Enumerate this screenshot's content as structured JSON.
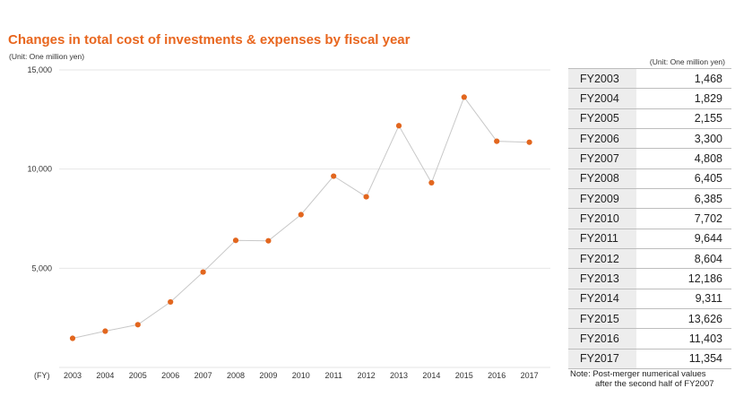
{
  "title": "Changes in total cost of investments & expenses by fiscal year",
  "unit_left": "(Unit: One million yen)",
  "unit_right": "(Unit: One million yen)",
  "x_axis_label": "(FY)",
  "note_line1": "Note: Post-merger numerical values",
  "note_line2": "after the second half of FY2007",
  "colors": {
    "title": "#e8661e",
    "marker": "#e2661e",
    "line": "#c8c8c8",
    "grid": "#e6e6e6",
    "table_label_bg": "#ededed"
  },
  "table": {
    "rows": [
      {
        "label": "FY2003",
        "value": "1,468"
      },
      {
        "label": "FY2004",
        "value": "1,829"
      },
      {
        "label": "FY2005",
        "value": "2,155"
      },
      {
        "label": "FY2006",
        "value": "3,300"
      },
      {
        "label": "FY2007",
        "value": "4,808"
      },
      {
        "label": "FY2008",
        "value": "6,405"
      },
      {
        "label": "FY2009",
        "value": "6,385"
      },
      {
        "label": "FY2010",
        "value": "7,702"
      },
      {
        "label": "FY2011",
        "value": "9,644"
      },
      {
        "label": "FY2012",
        "value": "8,604"
      },
      {
        "label": "FY2013",
        "value": "12,186"
      },
      {
        "label": "FY2014",
        "value": "9,311"
      },
      {
        "label": "FY2015",
        "value": "13,626"
      },
      {
        "label": "FY2016",
        "value": "11,403"
      },
      {
        "label": "FY2017",
        "value": "11,354"
      }
    ]
  },
  "chart_data": {
    "type": "line",
    "title": "Changes in total cost of investments & expenses by fiscal year",
    "xlabel": "(FY)",
    "ylabel": "",
    "categories": [
      "2003",
      "2004",
      "2005",
      "2006",
      "2007",
      "2008",
      "2009",
      "2010",
      "2011",
      "2012",
      "2013",
      "2014",
      "2015",
      "2016",
      "2017"
    ],
    "series": [
      {
        "values": [
          1468,
          1829,
          2155,
          3300,
          4808,
          6405,
          6385,
          7702,
          9644,
          8604,
          12186,
          9311,
          13626,
          11403,
          11354
        ]
      }
    ],
    "ylim": [
      0,
      15000
    ],
    "yticks": [
      {
        "value": 5000,
        "label": "5,000"
      },
      {
        "value": 10000,
        "label": "10,000"
      },
      {
        "value": 15000,
        "label": "15,000"
      }
    ],
    "grid": true,
    "markers": true
  }
}
